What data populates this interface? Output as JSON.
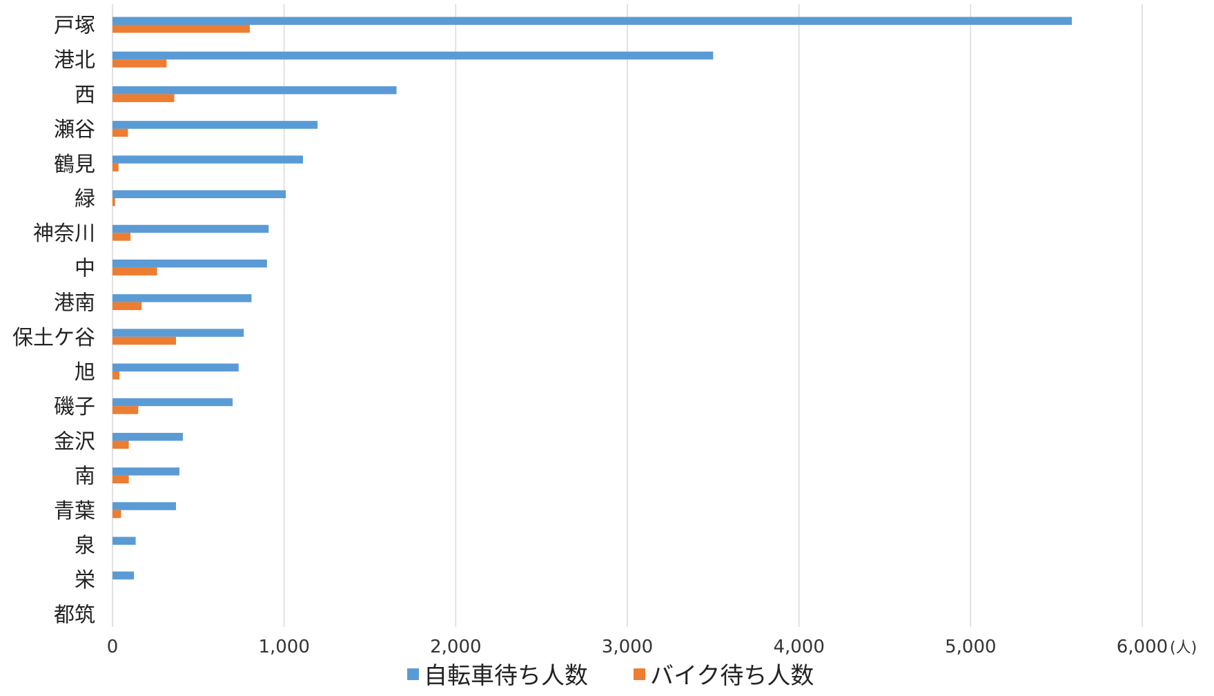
{
  "chart_data": {
    "type": "bar",
    "orientation": "horizontal",
    "categories": [
      "戸塚",
      "港北",
      "西",
      "瀬谷",
      "鶴見",
      "緑",
      "神奈川",
      "中",
      "港南",
      "保土ケ谷",
      "旭",
      "磯子",
      "金沢",
      "南",
      "青葉",
      "泉",
      "栄",
      "都筑"
    ],
    "series": [
      {
        "name": "自転車待ち人数",
        "color": "#5b9bd5",
        "values": [
          5590,
          3500,
          1655,
          1195,
          1110,
          1010,
          910,
          900,
          810,
          765,
          735,
          700,
          410,
          390,
          370,
          135,
          125,
          0
        ]
      },
      {
        "name": "バイク待ち人数",
        "color": "#ed7d31",
        "values": [
          800,
          315,
          360,
          90,
          35,
          15,
          105,
          260,
          170,
          370,
          40,
          150,
          95,
          95,
          50,
          0,
          0,
          0
        ]
      }
    ],
    "xlim": [
      0,
      6000
    ],
    "xticks": [
      0,
      1000,
      2000,
      3000,
      4000,
      5000,
      6000
    ],
    "xtick_labels": [
      "0",
      "1,000",
      "2,000",
      "3,000",
      "4,000",
      "5,000",
      "6,000"
    ],
    "xunit": "(人)",
    "grid": true,
    "legend_position": "bottom"
  }
}
